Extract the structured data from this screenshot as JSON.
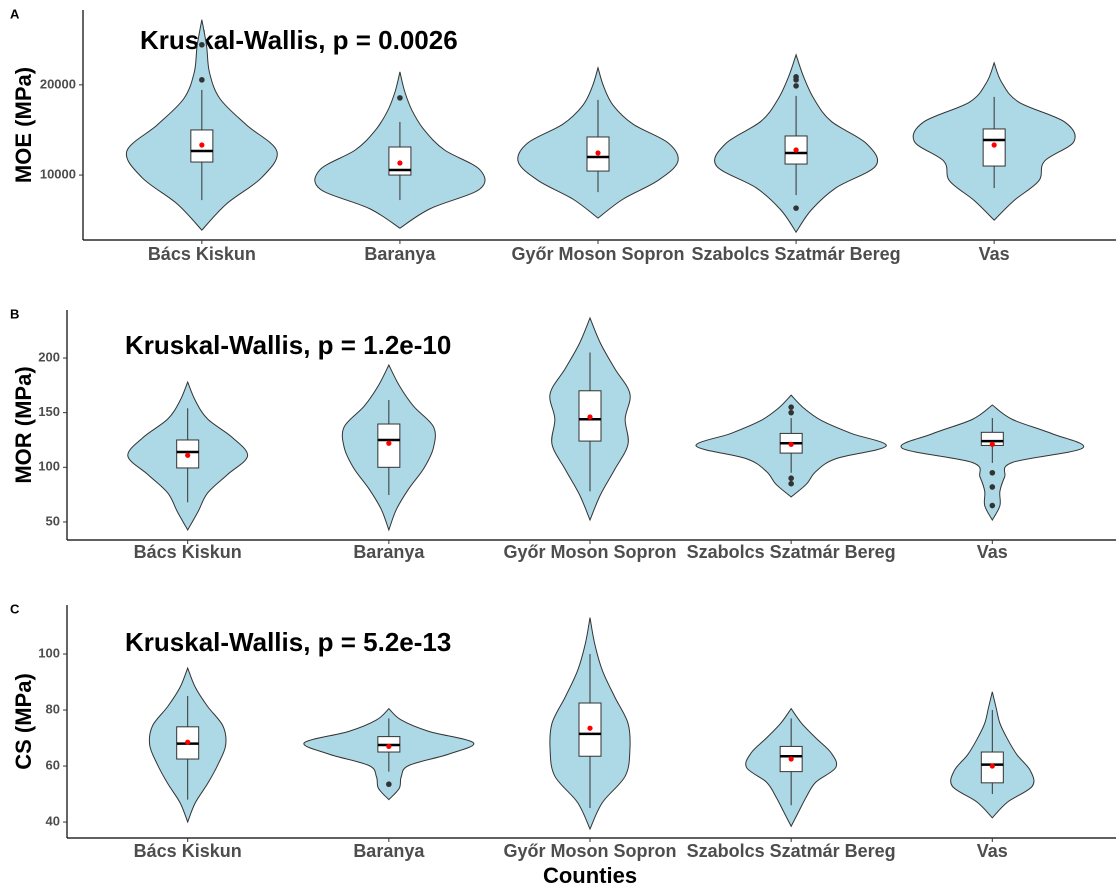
{
  "chart_data": [
    {
      "type": "violin",
      "panel": "A",
      "title": "Kruskal-Wallis, p = 0.0026",
      "ylabel": "MOE (MPa)",
      "categories": [
        "Bács Kiskun",
        "Baranya",
        "Győr Moson Sopron",
        "Szabolcs Szatmár Bereg",
        "Vas"
      ],
      "ylim": [
        2800,
        28300
      ],
      "yticks": [
        10000,
        20000
      ],
      "fill": "#add8e6",
      "mean_color": "#ff0000",
      "groups": [
        {
          "lower_whisker": 7222,
          "q1": 11444,
          "median": 12667,
          "q3": 15000,
          "upper_whisker": 19444,
          "mean": 13333,
          "outliers": [
            20556,
            24444
          ],
          "violin_range": [
            3889,
            27222
          ],
          "density": [
            0,
            0.26,
            0.63,
            0.79,
            0.47,
            0.19,
            0.08,
            0.05,
            0
          ]
        },
        {
          "lower_whisker": 7222,
          "q1": 10000,
          "median": 10556,
          "q3": 13111,
          "upper_whisker": 15889,
          "mean": 11333,
          "outliers": [
            18556
          ],
          "violin_range": [
            4111,
            21444
          ],
          "density": [
            0,
            0.32,
            0.84,
            0.84,
            0.47,
            0.26,
            0.13,
            0.05,
            0
          ]
        },
        {
          "lower_whisker": 8111,
          "q1": 10444,
          "median": 12000,
          "q3": 14222,
          "upper_whisker": 18333,
          "mean": 12444,
          "outliers": [],
          "violin_range": [
            5222,
            21889
          ],
          "density": [
            0,
            0.26,
            0.63,
            0.84,
            0.74,
            0.37,
            0.16,
            0.06,
            0
          ]
        },
        {
          "lower_whisker": 7778,
          "q1": 11222,
          "median": 12444,
          "q3": 14333,
          "upper_whisker": 18778,
          "mean": 12778,
          "outliers": [
            20889,
            20556,
            19889,
            6333
          ],
          "violin_range": [
            3667,
            23333
          ],
          "density": [
            0,
            0.16,
            0.42,
            0.84,
            0.74,
            0.37,
            0.19,
            0.08,
            0
          ]
        },
        {
          "lower_whisker": 8556,
          "q1": 11000,
          "median": 13889,
          "q3": 15111,
          "upper_whisker": 18667,
          "mean": 13333,
          "outliers": [],
          "violin_range": [
            5000,
            22444
          ],
          "density": [
            0,
            0.21,
            0.47,
            0.53,
            0.84,
            0.74,
            0.26,
            0.08,
            0
          ]
        }
      ]
    },
    {
      "type": "violin",
      "panel": "B",
      "title": "Kruskal-Wallis, p = 1.2e-10",
      "ylabel": "MOR (MPa)",
      "categories": [
        "Bács Kiskun",
        "Baranya",
        "Győr Moson Sopron",
        "Szabolcs Szatmár Bereg",
        "Vas"
      ],
      "ylim": [
        33.5,
        243.9
      ],
      "yticks": [
        50,
        100,
        150,
        200
      ],
      "fill": "#add8e6",
      "mean_color": "#ff0000",
      "groups": [
        {
          "lower_whisker": 68,
          "q1": 99.4,
          "median": 114,
          "q3": 125,
          "upper_whisker": 154,
          "mean": 111,
          "outliers": [],
          "violin_range": [
            42.7,
            178
          ],
          "density": [
            0,
            0.11,
            0.21,
            0.42,
            0.63,
            0.47,
            0.21,
            0.08,
            0
          ]
        },
        {
          "lower_whisker": 74.7,
          "q1": 100,
          "median": 125,
          "q3": 139.6,
          "upper_whisker": 161.6,
          "mean": 122,
          "outliers": [],
          "violin_range": [
            42.7,
            193.6
          ],
          "density": [
            0,
            0.08,
            0.21,
            0.37,
            0.47,
            0.47,
            0.26,
            0.11,
            0
          ]
        },
        {
          "lower_whisker": 78,
          "q1": 124,
          "median": 144,
          "q3": 170,
          "upper_whisker": 205,
          "mean": 146,
          "outliers": [],
          "violin_range": [
            51.8,
            236.6
          ],
          "density": [
            0,
            0.11,
            0.26,
            0.4,
            0.37,
            0.42,
            0.26,
            0.11,
            0
          ]
        },
        {
          "lower_whisker": 95,
          "q1": 113,
          "median": 122,
          "q3": 131,
          "upper_whisker": 145,
          "mean": 121,
          "outliers": [
            155,
            150,
            90,
            85
          ],
          "violin_range": [
            72.9,
            166
          ],
          "density": [
            0,
            0.16,
            0.26,
            0.47,
            1,
            0.63,
            0.32,
            0.13,
            0
          ]
        },
        {
          "lower_whisker": 104,
          "q1": 120,
          "median": 124,
          "q3": 132,
          "upper_whisker": 145,
          "mean": 121,
          "outliers": [
            95,
            82,
            65
          ],
          "violin_range": [
            51.8,
            157
          ],
          "density": [
            0,
            0.08,
            0.08,
            0.13,
            0.21,
            0.95,
            0.63,
            0.21,
            0
          ]
        }
      ]
    },
    {
      "type": "violin",
      "panel": "C",
      "title": "Kruskal-Wallis, p = 5.2e-13",
      "ylabel": "CS (MPa)",
      "xlabel": "Counties",
      "categories": [
        "Bács Kiskun",
        "Baranya",
        "Győr Moson Sopron",
        "Szabolcs Szatmár Bereg",
        "Vas"
      ],
      "ylim": [
        34.3,
        117.5
      ],
      "yticks": [
        40,
        60,
        80,
        100
      ],
      "fill": "#add8e6",
      "mean_color": "#ff0000",
      "groups": [
        {
          "lower_whisker": 48,
          "q1": 62.5,
          "median": 68,
          "q3": 74,
          "upper_whisker": 85,
          "mean": 68.5,
          "outliers": [],
          "violin_range": [
            40,
            95
          ],
          "density": [
            0,
            0.08,
            0.21,
            0.32,
            0.4,
            0.37,
            0.21,
            0.08,
            0
          ]
        },
        {
          "lower_whisker": 58,
          "q1": 65,
          "median": 67.5,
          "q3": 70.5,
          "upper_whisker": 77,
          "mean": 67,
          "outliers": [
            53.5
          ],
          "violin_range": [
            48,
            80.5
          ],
          "density": [
            0,
            0.11,
            0.13,
            0.21,
            0.63,
            0.89,
            0.42,
            0.13,
            0
          ]
        },
        {
          "lower_whisker": 45,
          "q1": 63.5,
          "median": 71.5,
          "q3": 82.5,
          "upper_whisker": 100,
          "mean": 73.5,
          "outliers": [],
          "violin_range": [
            37.5,
            113
          ],
          "density": [
            0,
            0.13,
            0.37,
            0.42,
            0.4,
            0.26,
            0.13,
            0.05,
            0
          ]
        },
        {
          "lower_whisker": 46,
          "q1": 58,
          "median": 63.5,
          "q3": 67,
          "upper_whisker": 77,
          "mean": 62.5,
          "outliers": [],
          "violin_range": [
            38.5,
            80.5
          ],
          "density": [
            0,
            0.08,
            0.16,
            0.26,
            0.47,
            0.42,
            0.26,
            0.11,
            0
          ]
        },
        {
          "lower_whisker": 50,
          "q1": 54,
          "median": 60.5,
          "q3": 65,
          "upper_whisker": 80,
          "mean": 60,
          "outliers": [],
          "violin_range": [
            41.5,
            86.5
          ],
          "density": [
            0,
            0.16,
            0.42,
            0.4,
            0.26,
            0.16,
            0.08,
            0.04,
            0
          ]
        }
      ]
    }
  ]
}
